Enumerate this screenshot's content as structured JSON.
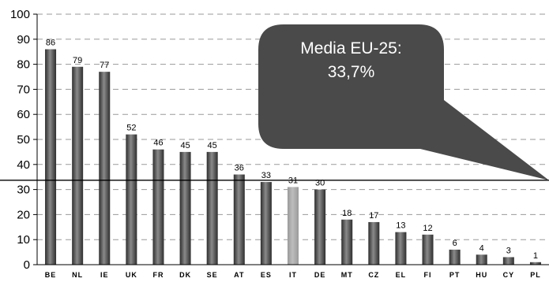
{
  "chart_data": {
    "type": "bar",
    "categories": [
      "BE",
      "NL",
      "IE",
      "UK",
      "FR",
      "DK",
      "SE",
      "AT",
      "ES",
      "IT",
      "DE",
      "MT",
      "CZ",
      "EL",
      "FI",
      "PT",
      "HU",
      "CY",
      "PL"
    ],
    "values": [
      86,
      79,
      77,
      52,
      46,
      45,
      45,
      36,
      33,
      31,
      30,
      18,
      17,
      13,
      12,
      6,
      4,
      3,
      1
    ],
    "data_labels": [
      "86",
      "79",
      "77",
      "52",
      "46",
      "45",
      "45",
      "36",
      "33",
      "31",
      "30",
      "18",
      "17",
      "13",
      "12",
      "6",
      "4",
      "3",
      "1"
    ],
    "ylim": [
      0,
      100
    ],
    "yticks": [
      0,
      10,
      20,
      30,
      40,
      50,
      60,
      70,
      80,
      90,
      100
    ],
    "ytick_labels": [
      "0",
      "10",
      "20",
      "30",
      "40",
      "50",
      "60",
      "70",
      "80",
      "90",
      "100"
    ],
    "title": "",
    "xlabel": "",
    "ylabel": "",
    "grid": true,
    "highlight_category": "IT",
    "reference_line": {
      "value": 33.7
    },
    "annotation": {
      "line1": "Media EU-25:",
      "line2": "33,7%"
    },
    "colors": {
      "bar": "#5a5a5a",
      "bar_highlight": "#a8a8a8",
      "callout_fill": "#4a4a4a",
      "callout_text": "#ffffff",
      "grid": "#9a9a9a",
      "axis": "#000000"
    }
  }
}
